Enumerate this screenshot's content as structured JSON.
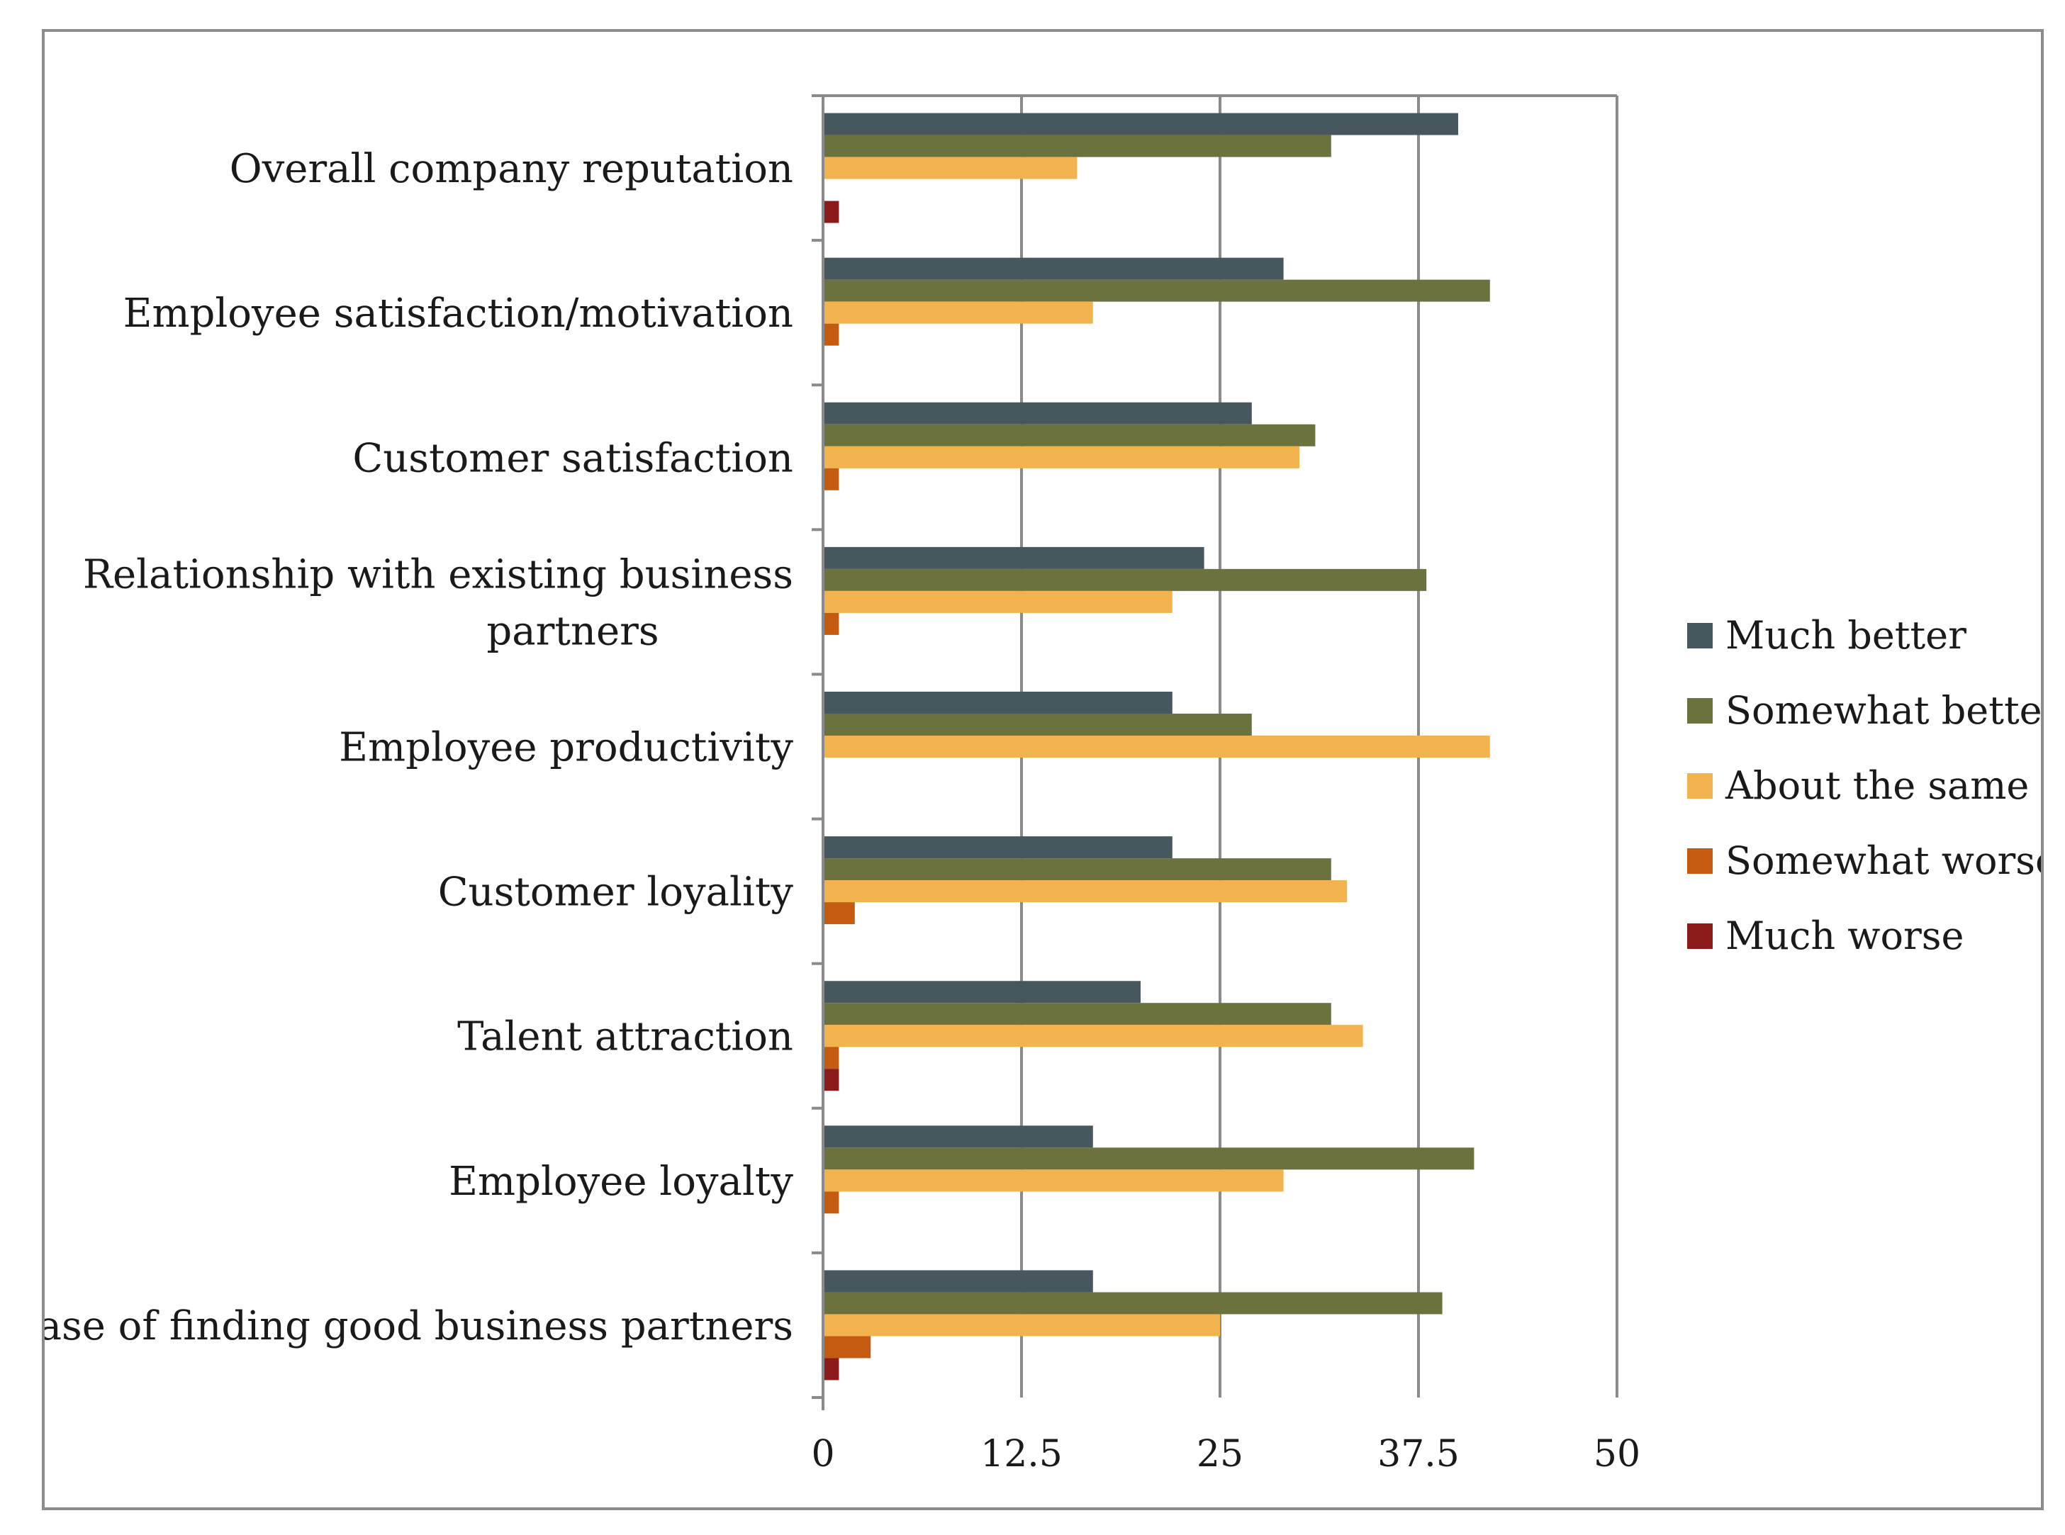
{
  "chart_data": {
    "type": "bar",
    "orientation": "horizontal",
    "categories": [
      [
        "Overall company reputation"
      ],
      [
        "Employee satisfaction/motivation"
      ],
      [
        "Customer satisfaction"
      ],
      [
        "Relationship with existing business",
        "partners"
      ],
      [
        "Employee productivity"
      ],
      [
        "Customer loyality"
      ],
      [
        "Talent attraction"
      ],
      [
        "Employee loyalty"
      ],
      [
        "Ease of finding good business partners"
      ]
    ],
    "series": [
      {
        "name": "Much better",
        "color": "#46585e",
        "values": [
          40,
          29,
          27,
          24,
          22,
          22,
          20,
          17,
          17
        ]
      },
      {
        "name": "Somewhat better",
        "color": "#6b723d",
        "values": [
          32,
          42,
          31,
          38,
          27,
          32,
          32,
          41,
          39
        ]
      },
      {
        "name": "About the same",
        "color": "#f2b24e",
        "values": [
          16,
          17,
          30,
          22,
          42,
          33,
          34,
          29,
          25
        ]
      },
      {
        "name": "Somewhat worse",
        "color": "#c55a11",
        "values": [
          0,
          1,
          1,
          1,
          0,
          2,
          1,
          1,
          3
        ]
      },
      {
        "name": "Much worse",
        "color": "#8b1a1a",
        "values": [
          1,
          0,
          0,
          0,
          0,
          0,
          1,
          0,
          1
        ]
      }
    ],
    "xlim": [
      0,
      50
    ],
    "xticks": [
      "0",
      "12.5",
      "25",
      "37.5",
      "50"
    ],
    "xtick_values": [
      0,
      12.5,
      25,
      37.5,
      50
    ],
    "grid": "vertical",
    "legend_position": "right"
  }
}
